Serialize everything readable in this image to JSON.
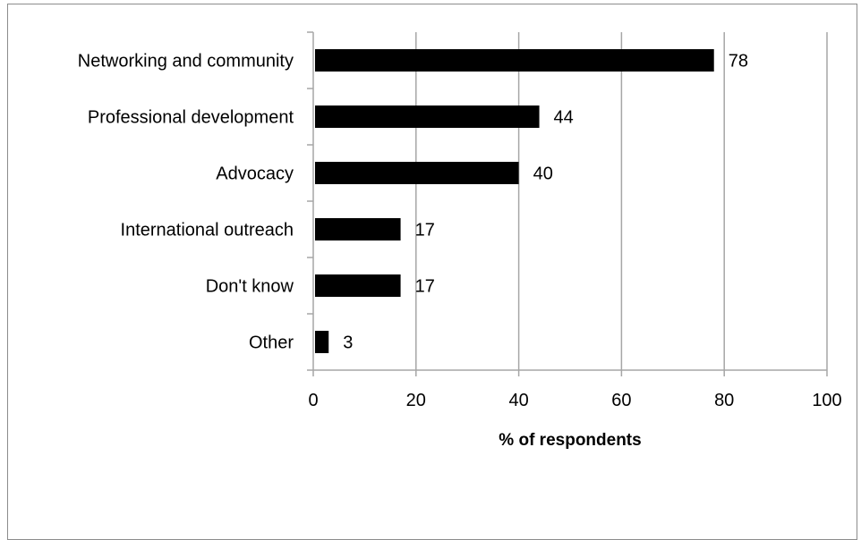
{
  "chart_data": {
    "type": "bar",
    "orientation": "horizontal",
    "categories": [
      "Networking and community",
      "Professional development",
      "Advocacy",
      "International outreach",
      "Don't know",
      "Other"
    ],
    "values": [
      78,
      44,
      40,
      17,
      17,
      3
    ],
    "data_labels": [
      "78",
      "44",
      "40",
      "17",
      "17",
      "3"
    ],
    "xlabel": "% of respondents",
    "xlim": [
      0,
      100
    ],
    "xticks": [
      0,
      20,
      40,
      60,
      80,
      100
    ],
    "xtick_labels": [
      "0",
      "20",
      "40",
      "60",
      "80",
      "100"
    ],
    "grid": "vertical",
    "legend": "none",
    "bar_color": "#000000",
    "grid_color": "#a6a6a6"
  }
}
